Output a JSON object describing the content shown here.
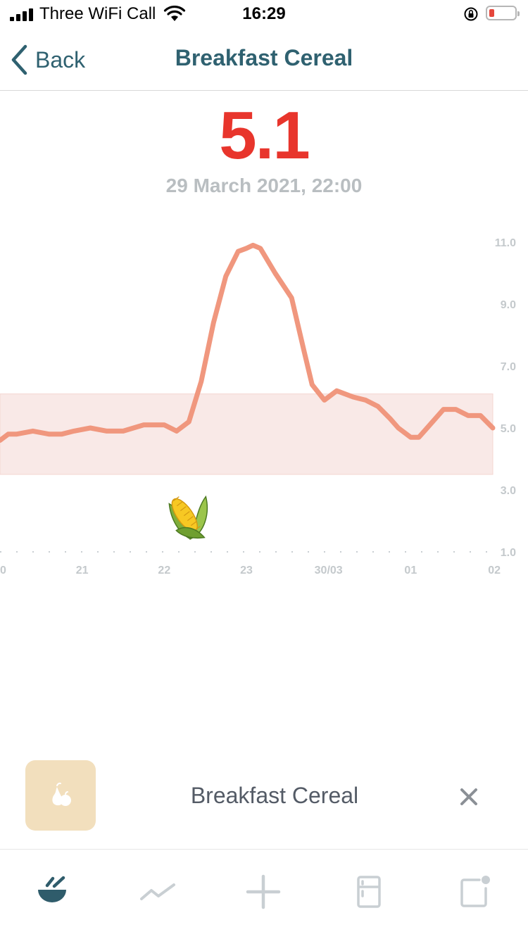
{
  "status_bar": {
    "carrier": "Three WiFi Call",
    "time": "16:29",
    "battery_level": 0.2,
    "battery_color": "#e5463b"
  },
  "nav": {
    "back_label": "Back",
    "title": "Breakfast Cereal",
    "icon": "chevron-left-icon"
  },
  "reading": {
    "value": "5.1",
    "date": "29 March 2021, 22:00",
    "value_color": "#e8352c"
  },
  "chart_data": {
    "type": "line",
    "title": "",
    "xlabel": "",
    "ylabel": "",
    "x_tick_labels": [
      "0",
      "21",
      "22",
      "23",
      "30/03",
      "01",
      "02"
    ],
    "y_tick_labels": [
      "11.0",
      "9.0",
      "7.0",
      "5.0",
      "3.0",
      "1.0"
    ],
    "ylim": [
      1.0,
      11.0
    ],
    "x_unit": "hour",
    "target_range": [
      3.5,
      6.1
    ],
    "line_color": "#f0977e",
    "band_color": "#f9e9e7",
    "series": [
      {
        "x": [
          20.0,
          20.1,
          20.2,
          20.4,
          20.6,
          20.75,
          20.9,
          21.1,
          21.3,
          21.5,
          21.75,
          22.0,
          22.15,
          22.3,
          22.45,
          22.6,
          22.75,
          22.9,
          23.0,
          23.08,
          23.17,
          23.35,
          23.55,
          23.7,
          23.8,
          23.95,
          24.1,
          24.3,
          24.45,
          24.6,
          24.75,
          24.85,
          25.0,
          25.1,
          25.2,
          25.4,
          25.55,
          25.7,
          25.85,
          26.0
        ],
        "y": [
          4.6,
          4.8,
          4.8,
          4.9,
          4.8,
          4.8,
          4.9,
          5.0,
          4.9,
          4.9,
          5.1,
          5.1,
          4.9,
          5.2,
          6.5,
          8.4,
          9.9,
          10.7,
          10.8,
          10.9,
          10.8,
          10.0,
          9.2,
          7.5,
          6.4,
          5.9,
          6.2,
          6.0,
          5.9,
          5.7,
          5.3,
          5.0,
          4.7,
          4.7,
          5.0,
          5.6,
          5.6,
          5.4,
          5.4,
          5.0
        ]
      }
    ],
    "meal_markers": [
      {
        "x": 22.3,
        "y": 2.1,
        "icon": "corn-icon"
      }
    ]
  },
  "food_entry": {
    "name": "Breakfast Cereal",
    "thumb_icon": "fruit-icon",
    "thumb_color": "#f2dfbd",
    "remove_icon": "close-icon"
  },
  "tab_bar": {
    "tabs": [
      {
        "icon": "bowl-icon",
        "active": true
      },
      {
        "icon": "trend-icon",
        "active": false
      },
      {
        "icon": "plus-icon",
        "active": false
      },
      {
        "icon": "fridge-icon",
        "active": false
      },
      {
        "icon": "notes-icon",
        "active": false
      }
    ],
    "active_color": "#2f5c6b",
    "inactive_color": "#c9cfd3"
  }
}
